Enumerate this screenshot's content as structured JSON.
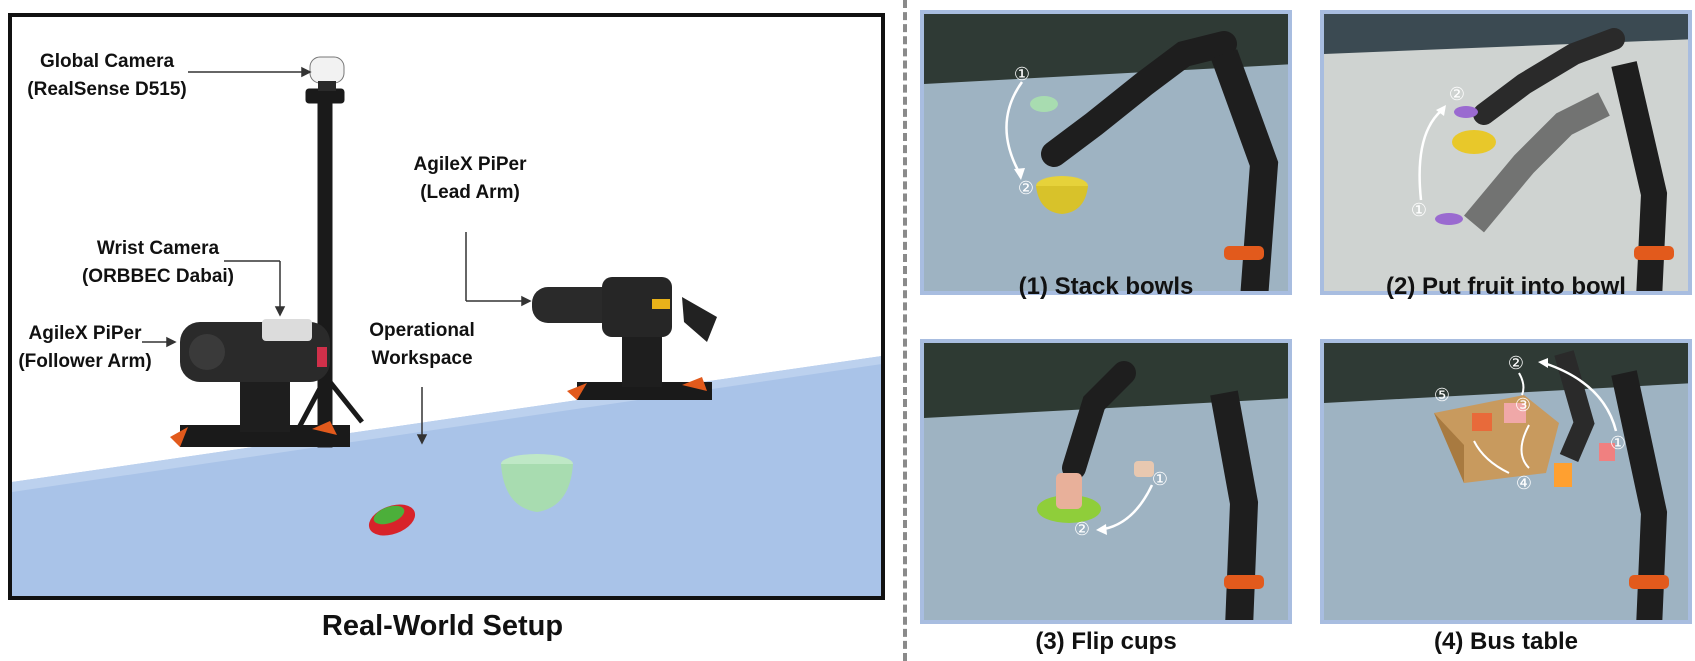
{
  "left_panel": {
    "caption": "Real-World Setup",
    "labels": {
      "global_camera_line1": "Global Camera",
      "global_camera_line2": "(RealSense D515)",
      "lead_arm_line1": "AgileX PiPer",
      "lead_arm_line2": "(Lead Arm)",
      "wrist_camera_line1": "Wrist Camera",
      "wrist_camera_line2": "(ORBBEC Dabai)",
      "follower_arm_line1": "AgileX PiPer",
      "follower_arm_line2": "(Follower Arm)",
      "workspace_line1": "Operational",
      "workspace_line2": "Workspace"
    }
  },
  "tasks": [
    {
      "caption": "(1) Stack bowls",
      "steps": [
        "①",
        "②"
      ]
    },
    {
      "caption": "(2) Put fruit into bowl",
      "steps": [
        "①",
        "②"
      ]
    },
    {
      "caption": "(3) Flip cups",
      "steps": [
        "①",
        "②"
      ]
    },
    {
      "caption": "(4) Bus table",
      "steps": [
        "①",
        "②",
        "③",
        "④",
        "⑤"
      ]
    }
  ],
  "colors": {
    "table_blue": "#a9c3e8",
    "panel_border": "#a8bde0",
    "bowl_green": "#a8dcb0",
    "arm_dark": "#1e1e1e",
    "accent_orange": "#e25a1c"
  }
}
